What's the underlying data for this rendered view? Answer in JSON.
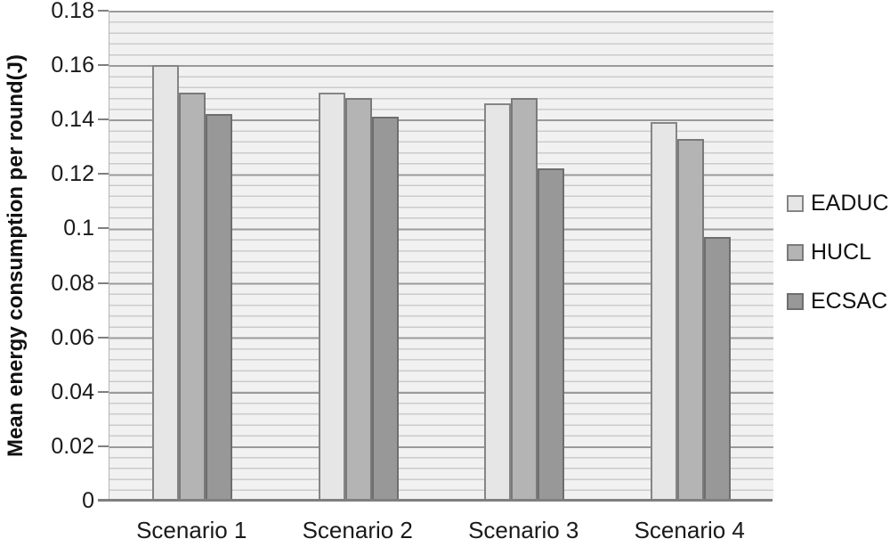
{
  "chart_data": {
    "type": "bar",
    "title": "",
    "xlabel": "",
    "ylabel": "Mean energy consumption per round(J)",
    "categories": [
      "Scenario 1",
      "Scenario 2",
      "Scenario 3",
      "Scenario 4"
    ],
    "series": [
      {
        "name": "EADUC",
        "values": [
          0.16,
          0.15,
          0.146,
          0.139
        ],
        "fill": "#e6e6e6",
        "border": "#858585"
      },
      {
        "name": "HUCL",
        "values": [
          0.15,
          0.148,
          0.148,
          0.133
        ],
        "fill": "#b4b4b4",
        "border": "#7a7a7a"
      },
      {
        "name": "ECSAC",
        "values": [
          0.142,
          0.141,
          0.122,
          0.097
        ],
        "fill": "#989898",
        "border": "#6e6e6e"
      }
    ],
    "ylim": [
      0,
      0.18
    ],
    "ymajor_unit": 0.02,
    "yminor_unit": 0.004,
    "ytick_labels": [
      "0",
      "0.02",
      "0.04",
      "0.06",
      "0.08",
      "0.1",
      "0.12",
      "0.14",
      "0.16",
      "0.18"
    ],
    "grid": "horizontal major + minor stripes",
    "legend_position": "right"
  },
  "colors": {
    "plot_bg": "#f1f1f1",
    "minor_grid": "#cbcbcb",
    "major_grid": "#9a9a9a",
    "axis": "#7f7f7f",
    "text": "#1a1a1a"
  }
}
